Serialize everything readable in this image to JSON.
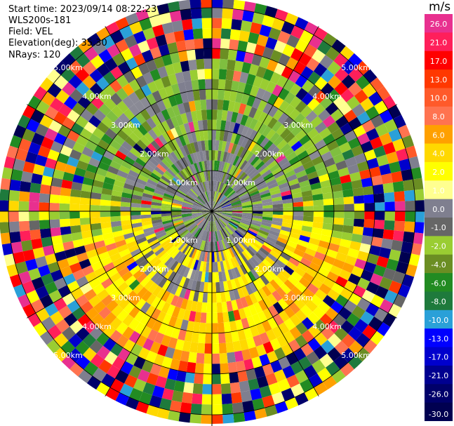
{
  "header": {
    "start_time": "Start time: 2023/09/14 08:22:23",
    "instrument": "WLS200s-181",
    "field": "Field: VEL",
    "elevation": "Elevation(deg): 35.30",
    "nrays": "NRays: 120"
  },
  "chart_data": {
    "type": "heatmap",
    "projection": "polar (PPI scan)",
    "field": "VEL",
    "units": "m/s",
    "elevation_deg": 35.3,
    "n_rays": 120,
    "range_rings_km": [
      1.0,
      2.0,
      3.0,
      4.0,
      5.0
    ],
    "range_ring_labels": [
      "1.00km",
      "2.00km",
      "3.00km",
      "4.00km",
      "5.00km"
    ],
    "radials_deg": [
      0,
      30,
      60,
      90,
      120,
      150,
      180,
      210,
      240,
      270,
      300,
      330
    ],
    "colorbar": {
      "units": "m/s",
      "tick_labels": [
        "26.0",
        "21.0",
        "17.0",
        "13.0",
        "10.0",
        "8.0",
        "6.0",
        "4.0",
        "2.0",
        "1.0",
        "0.0",
        "-1.0",
        "-2.0",
        "-4.0",
        "-6.0",
        "-8.0",
        "-10.0",
        "-13.0",
        "-17.0",
        "-21.0",
        "-26.0",
        "-30.0"
      ],
      "colors": [
        "#e8308f",
        "#ff1f5a",
        "#ff0000",
        "#ff3800",
        "#ff5a2a",
        "#ff7350",
        "#ffa000",
        "#ffd800",
        "#ffff00",
        "#ffff90",
        "#7f7f8f",
        "#666666",
        "#9acd32",
        "#6b8e23",
        "#228b22",
        "#1e7a3c",
        "#2aa0d8",
        "#0000ff",
        "#0000cd",
        "#000090",
        "#00006a",
        "#000050"
      ]
    },
    "pattern_notes": {
      "near_range_0_1km": "gray / olive, near 0 m/s",
      "mid_range_north": "green shades, negative velocities",
      "mid_range_south": "yellow to orange, positive velocities",
      "far_range": "noisy speckle across full color scale"
    }
  }
}
